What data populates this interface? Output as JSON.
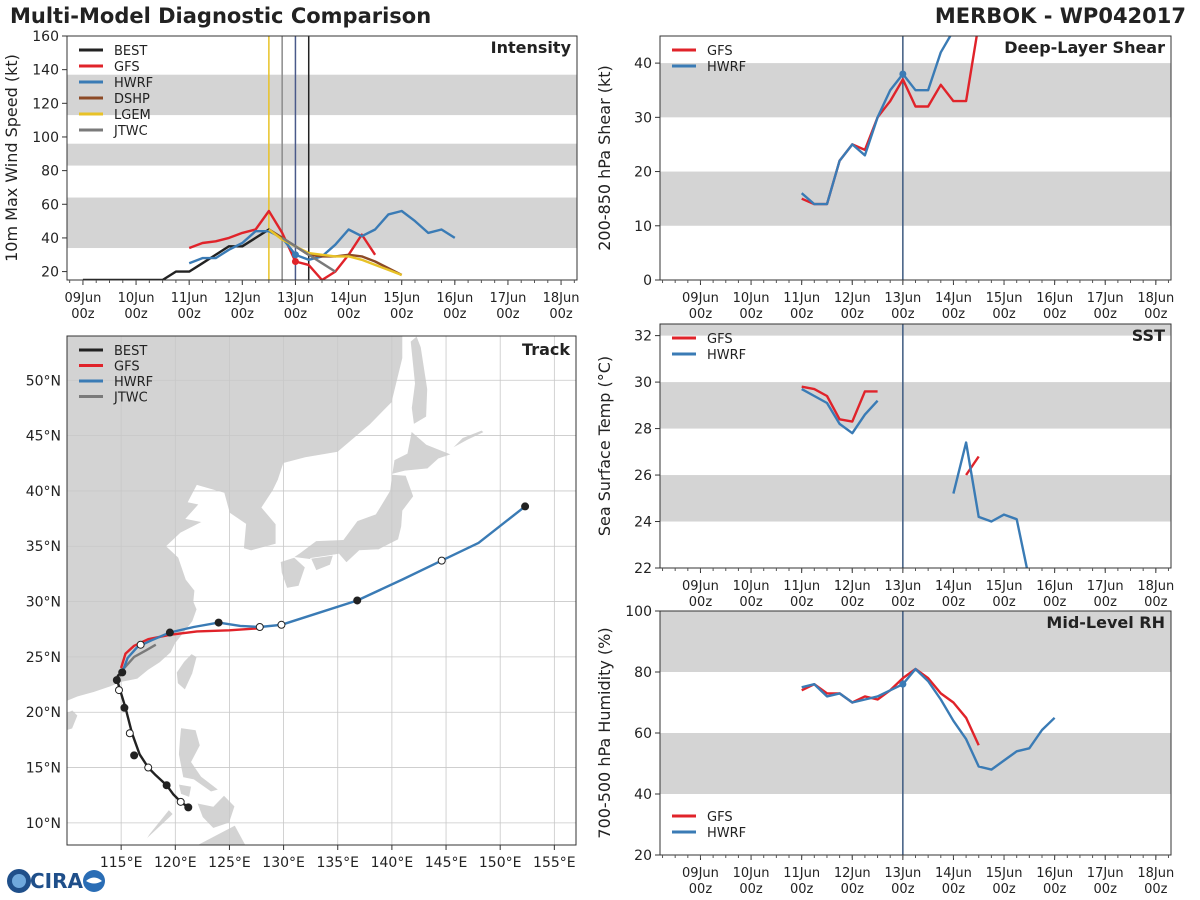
{
  "header": {
    "title": "Multi-Model Diagnostic Comparison",
    "storm": "MERBOK - WP042017"
  },
  "logo": {
    "text": "CIRA",
    "icon": "cira-logo-icon"
  },
  "colors": {
    "BEST": "#222222",
    "GFS": "#e0232a",
    "HWRF": "#3a7bb5",
    "DSHP": "#8c4a26",
    "LGEM": "#e8c227",
    "JTWC": "#7a7a7a",
    "band": "#d4d4d4",
    "land": "#d3d3d3",
    "vline": "#3d5a80"
  },
  "time_axis": {
    "ticks": [
      0,
      1,
      2,
      3,
      4,
      5,
      6,
      7,
      8,
      9
    ],
    "labels_top": [
      "09Jun",
      "10Jun",
      "11Jun",
      "12Jun",
      "13Jun",
      "14Jun",
      "15Jun",
      "16Jun",
      "17Jun",
      "18Jun"
    ],
    "labels_bottom": [
      "00z",
      "00z",
      "00z",
      "00z",
      "00z",
      "00z",
      "00z",
      "00z",
      "00z",
      "00z"
    ]
  },
  "chart_data": [
    {
      "id": "intensity",
      "type": "line",
      "title": "Intensity",
      "ylabel": "10m Max Wind Speed (kt)",
      "xlim": [
        -0.3,
        9.3
      ],
      "ylim": [
        15,
        160
      ],
      "yticks": [
        20,
        40,
        60,
        80,
        100,
        120,
        140,
        160
      ],
      "bands": [
        [
          34,
          64
        ],
        [
          83,
          96
        ],
        [
          113,
          137
        ]
      ],
      "vlines": [
        {
          "x": 3.5,
          "color": "#e8c227"
        },
        {
          "x": 3.75,
          "color": "#8c8c8c"
        },
        {
          "x": 4.0,
          "color": "#4a5a8a"
        },
        {
          "x": 4.25,
          "color": "#222222"
        }
      ],
      "legend": [
        "BEST",
        "GFS",
        "HWRF",
        "DSHP",
        "LGEM",
        "JTWC"
      ],
      "series": [
        {
          "name": "BEST",
          "x": [
            0,
            0.25,
            0.5,
            0.75,
            1,
            1.25,
            1.5,
            1.75,
            2,
            2.25,
            2.5,
            2.75,
            3,
            3.25,
            3.5,
            3.75,
            4.0,
            4.25
          ],
          "y": [
            15,
            15,
            15,
            15,
            15,
            15,
            15,
            20,
            20,
            25,
            30,
            35,
            35,
            40,
            45,
            40,
            35,
            30
          ]
        },
        {
          "name": "GFS",
          "x": [
            2,
            2.25,
            2.5,
            2.75,
            3,
            3.25,
            3.5,
            3.75,
            4,
            4.25,
            4.5,
            4.75,
            5,
            5.25,
            5.5
          ],
          "y": [
            34,
            37,
            38,
            40,
            43,
            45,
            56,
            43,
            26,
            24,
            15,
            20,
            30,
            42,
            30
          ]
        },
        {
          "name": "HWRF",
          "x": [
            2,
            2.25,
            2.5,
            2.75,
            3,
            3.25,
            3.5,
            3.75,
            4,
            4.25,
            4.5,
            4.75,
            5,
            5.25,
            5.5,
            5.75,
            6,
            6.25,
            6.5,
            6.75,
            7
          ],
          "y": [
            25,
            28,
            28,
            33,
            37,
            44,
            44,
            40,
            30,
            27,
            29,
            36,
            45,
            41,
            45,
            54,
            56,
            50,
            43,
            45,
            40
          ]
        },
        {
          "name": "DSHP",
          "x": [
            3.5,
            3.75,
            4,
            4.25,
            4.5,
            4.75,
            5,
            5.25,
            5.5,
            5.75,
            6
          ],
          "y": [
            45,
            40,
            35,
            30,
            29,
            29,
            30,
            29,
            26,
            22,
            18
          ]
        },
        {
          "name": "LGEM",
          "x": [
            3.5,
            3.75,
            4,
            4.25,
            4.5,
            4.75,
            5,
            5.25,
            5.5,
            5.75,
            6
          ],
          "y": [
            45,
            39,
            35,
            31,
            30,
            29,
            29,
            27,
            24,
            21,
            18
          ]
        },
        {
          "name": "JTWC",
          "x": [
            3.75,
            4,
            4.25,
            4.5,
            4.75
          ],
          "y": [
            40,
            35,
            30,
            25,
            20
          ]
        }
      ],
      "markers": [
        {
          "series": "GFS",
          "x": 4,
          "y": 26
        },
        {
          "series": "HWRF",
          "x": 4,
          "y": 30
        }
      ]
    },
    {
      "id": "shear",
      "type": "line",
      "title": "Deep-Layer Shear",
      "ylabel": "200-850 hPa Shear (kt)",
      "xlim": [
        -0.8,
        9.3
      ],
      "ylim": [
        0,
        45
      ],
      "yticks": [
        0,
        10,
        20,
        30,
        40
      ],
      "bands": [
        [
          10,
          20
        ],
        [
          30,
          40
        ]
      ],
      "vlines": [
        {
          "x": 4.0,
          "color": "#3d5a80"
        }
      ],
      "legend": [
        "GFS",
        "HWRF"
      ],
      "series": [
        {
          "name": "GFS",
          "x": [
            2,
            2.25,
            2.5,
            2.75,
            3,
            3.25,
            3.5,
            3.75,
            4,
            4.25,
            4.5,
            4.75,
            5,
            5.25,
            5.5
          ],
          "y": [
            15,
            14,
            14,
            22,
            25,
            24,
            30,
            33,
            37,
            32,
            32,
            36,
            33,
            33,
            50
          ]
        },
        {
          "name": "HWRF",
          "x": [
            2,
            2.25,
            2.5,
            2.75,
            3,
            3.25,
            3.5,
            3.75,
            4,
            4.25,
            4.5,
            4.75,
            5
          ],
          "y": [
            16,
            14,
            14,
            22,
            25,
            23,
            30,
            35,
            38,
            35,
            35,
            42,
            46
          ]
        }
      ],
      "markers": [
        {
          "series": "HWRF",
          "x": 4,
          "y": 38
        }
      ]
    },
    {
      "id": "sst",
      "type": "line",
      "title": "SST",
      "ylabel": "Sea Surface Temp (°C)",
      "xlim": [
        -0.8,
        9.3
      ],
      "ylim": [
        22,
        32.5
      ],
      "yticks": [
        22,
        24,
        26,
        28,
        30,
        32
      ],
      "bands": [
        [
          24,
          26
        ],
        [
          28,
          30
        ],
        [
          32,
          32.5
        ]
      ],
      "vlines": [
        {
          "x": 4.0,
          "color": "#3d5a80"
        }
      ],
      "legend": [
        "GFS",
        "HWRF"
      ],
      "series": [
        {
          "name": "GFS",
          "segments": [
            {
              "x": [
                2,
                2.25,
                2.5,
                2.75,
                3,
                3.25,
                3.5
              ],
              "y": [
                29.8,
                29.7,
                29.4,
                28.4,
                28.3,
                29.6,
                29.6
              ]
            },
            {
              "x": [
                5.25,
                5.5
              ],
              "y": [
                26.0,
                26.8
              ]
            }
          ]
        },
        {
          "name": "HWRF",
          "segments": [
            {
              "x": [
                2,
                2.25,
                2.5,
                2.75,
                3,
                3.25,
                3.5
              ],
              "y": [
                29.7,
                29.4,
                29.1,
                28.2,
                27.8,
                28.6,
                29.2
              ]
            },
            {
              "x": [
                5,
                5.25,
                5.5,
                5.75,
                6,
                6.25,
                6.5
              ],
              "y": [
                25.2,
                27.4,
                24.2,
                24.0,
                24.3,
                24.1,
                21.5
              ]
            }
          ]
        }
      ],
      "markers": []
    },
    {
      "id": "rh",
      "type": "line",
      "title": "Mid-Level RH",
      "ylabel": "700-500 hPa Humidity (%)",
      "xlim": [
        -0.8,
        9.3
      ],
      "ylim": [
        20,
        100
      ],
      "yticks": [
        20,
        40,
        60,
        80,
        100
      ],
      "bands": [
        [
          40,
          60
        ],
        [
          80,
          100
        ]
      ],
      "vlines": [
        {
          "x": 4.0,
          "color": "#3d5a80"
        }
      ],
      "legend": [
        "GFS",
        "HWRF"
      ],
      "legend_pos": "bottom-left",
      "series": [
        {
          "name": "GFS",
          "x": [
            2,
            2.25,
            2.5,
            2.75,
            3,
            3.25,
            3.5,
            3.75,
            4,
            4.25,
            4.5,
            4.75,
            5,
            5.25,
            5.5
          ],
          "y": [
            74,
            76,
            73,
            73,
            70,
            72,
            71,
            74,
            78,
            81,
            78,
            73,
            70,
            65,
            56
          ]
        },
        {
          "name": "HWRF",
          "x": [
            2,
            2.25,
            2.5,
            2.75,
            3,
            3.25,
            3.5,
            3.75,
            4,
            4.25,
            4.5,
            4.75,
            5,
            5.25,
            5.5,
            5.75,
            6,
            6.25,
            6.5,
            6.75,
            7
          ],
          "y": [
            75,
            76,
            72,
            73,
            70,
            71,
            72,
            74,
            76,
            81,
            77,
            71,
            64,
            58,
            49,
            48,
            51,
            54,
            55,
            61,
            65
          ]
        }
      ],
      "markers": [
        {
          "series": "HWRF",
          "x": 4,
          "y": 76
        }
      ]
    },
    {
      "id": "track",
      "type": "scatter",
      "title": "Track",
      "xlim": [
        110,
        157
      ],
      "ylim": [
        8,
        54
      ],
      "xticks": [
        115,
        120,
        125,
        130,
        135,
        140,
        145,
        150,
        155
      ],
      "xticklabels": [
        "115°E",
        "120°E",
        "125°E",
        "130°E",
        "135°E",
        "140°E",
        "145°E",
        "150°E",
        "155°E"
      ],
      "yticks": [
        10,
        15,
        20,
        25,
        30,
        35,
        40,
        45,
        50
      ],
      "yticklabels": [
        "10°N",
        "15°N",
        "20°N",
        "25°N",
        "30°N",
        "35°N",
        "40°N",
        "45°N",
        "50°N"
      ],
      "legend": [
        "BEST",
        "GFS",
        "HWRF",
        "JTWC"
      ],
      "series": [
        {
          "name": "BEST",
          "lon": [
            121.2,
            120.5,
            119.8,
            119.2,
            118.2,
            117.5,
            116.7,
            116.0,
            115.4,
            114.9,
            114.6,
            114.7,
            115.2
          ],
          "lat": [
            11.4,
            11.9,
            12.6,
            13.4,
            14.3,
            15.0,
            16.2,
            18.1,
            20.4,
            22.0,
            23.0,
            23.3,
            23.8
          ],
          "points": [
            [
              121.2,
              11.4,
              "f"
            ],
            [
              120.5,
              11.9,
              "o"
            ],
            [
              119.2,
              13.4,
              "f"
            ],
            [
              117.5,
              15.0,
              "o"
            ],
            [
              116.2,
              16.1,
              "f"
            ],
            [
              115.8,
              18.1,
              "o"
            ],
            [
              115.3,
              20.4,
              "f"
            ],
            [
              114.8,
              22.0,
              "o"
            ],
            [
              114.6,
              22.9,
              "f"
            ]
          ]
        },
        {
          "name": "GFS",
          "lon": [
            115.0,
            115.4,
            116.2,
            117.5,
            119.5,
            122.0,
            125.0,
            128.0
          ],
          "lat": [
            24.0,
            25.3,
            26.0,
            26.6,
            27.0,
            27.3,
            27.4,
            27.6
          ],
          "points": []
        },
        {
          "name": "HWRF",
          "lon": [
            115.1,
            115.6,
            116.5,
            117.8,
            119.5,
            121.7,
            124.0,
            126.0,
            127.8,
            129.8,
            133.0,
            136.8,
            141.0,
            144.6,
            148.0,
            152.3
          ],
          "lat": [
            23.6,
            24.9,
            25.9,
            26.5,
            27.2,
            27.7,
            28.1,
            27.8,
            27.7,
            27.9,
            28.9,
            30.1,
            32.0,
            33.7,
            35.3,
            38.6
          ],
          "points": [
            [
              115.1,
              23.6,
              "f"
            ],
            [
              116.8,
              26.1,
              "o"
            ],
            [
              119.5,
              27.2,
              "f"
            ],
            [
              124.0,
              28.1,
              "f"
            ],
            [
              127.8,
              27.7,
              "o"
            ],
            [
              129.8,
              27.9,
              "o"
            ],
            [
              136.8,
              30.1,
              "f"
            ],
            [
              144.6,
              33.7,
              "o"
            ],
            [
              152.3,
              38.6,
              "f"
            ]
          ]
        },
        {
          "name": "JTWC",
          "lon": [
            114.6,
            115.2,
            116.2,
            117.3,
            118.2
          ],
          "lat": [
            22.8,
            23.9,
            25.0,
            25.6,
            26.1
          ],
          "points": []
        }
      ]
    }
  ]
}
